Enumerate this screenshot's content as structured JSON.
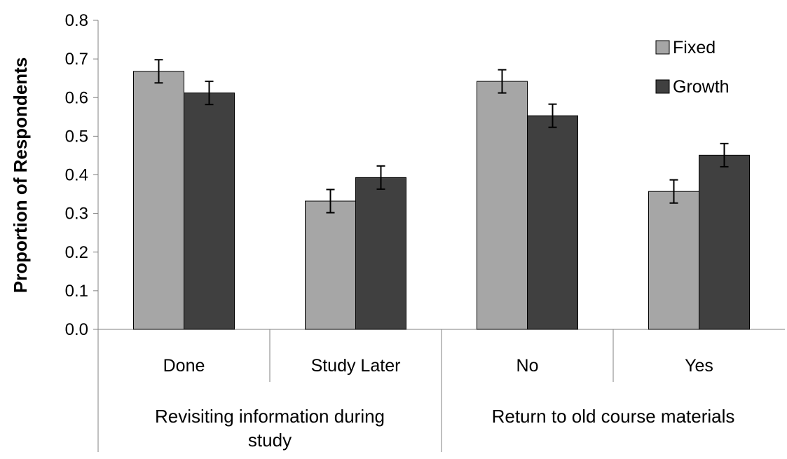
{
  "chart_data": {
    "type": "bar",
    "ylabel": "Proportion of Respondents",
    "xlabel": "",
    "ylim": [
      0,
      0.8
    ],
    "yticks": [
      "0.0",
      "0.1",
      "0.2",
      "0.3",
      "0.4",
      "0.5",
      "0.6",
      "0.7",
      "0.8"
    ],
    "categories": [
      "Done",
      "Study Later",
      "No",
      "Yes"
    ],
    "groups": [
      {
        "label_lines": [
          "Revisiting information during",
          "study"
        ],
        "categories": [
          "Done",
          "Study Later"
        ]
      },
      {
        "label_lines": [
          "Return to old course materials"
        ],
        "categories": [
          "No",
          "Yes"
        ]
      }
    ],
    "series": [
      {
        "name": "Fixed",
        "color": "#a6a6a6",
        "values": [
          0.668,
          0.332,
          0.642,
          0.357
        ],
        "errors": [
          0.03,
          0.03,
          0.03,
          0.03
        ]
      },
      {
        "name": "Growth",
        "color": "#404040",
        "values": [
          0.612,
          0.393,
          0.553,
          0.451
        ],
        "errors": [
          0.03,
          0.03,
          0.03,
          0.03
        ]
      }
    ],
    "legend_position": "top-right",
    "grid": false
  }
}
